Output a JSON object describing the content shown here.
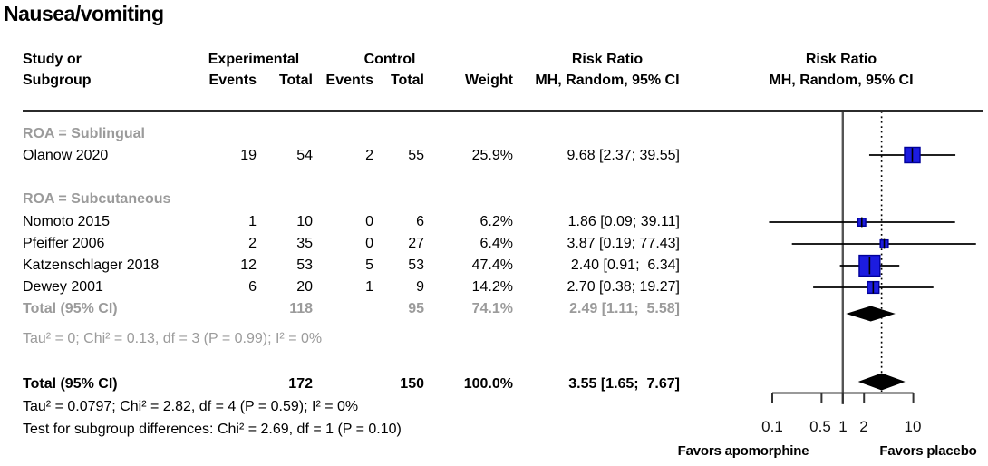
{
  "title": "Nausea/vomiting",
  "table": {
    "header": {
      "study_line1": "Study or",
      "study_line2": "Subgroup",
      "experimental": "Experimental",
      "control": "Control",
      "events_exp": "Events",
      "total_exp": "Total",
      "events_ctrl": "Events",
      "total_ctrl": "Total",
      "weight": "Weight",
      "rr_text_line1": "Risk Ratio",
      "rr_text_line2": "MH, Random, 95% CI",
      "rr_plot_line1": "Risk Ratio",
      "rr_plot_line2": "MH, Random, 95% CI"
    },
    "subgroup1_label": "ROA = Sublingual",
    "subgroup2_label": "ROA = Subcutaneous",
    "rows": [
      {
        "study": "Olanow 2020",
        "events_exp": "19",
        "total_exp": "54",
        "events_ctrl": "2",
        "total_ctrl": "55",
        "weight": "25.9%",
        "rr": "9.68 [2.37; 39.55]"
      },
      {
        "study": "Nomoto 2015",
        "events_exp": "1",
        "total_exp": "10",
        "events_ctrl": "0",
        "total_ctrl": "6",
        "weight": "6.2%",
        "rr": "1.86 [0.09; 39.11]"
      },
      {
        "study": "Pfeiffer 2006",
        "events_exp": "2",
        "total_exp": "35",
        "events_ctrl": "0",
        "total_ctrl": "27",
        "weight": "6.4%",
        "rr": "3.87 [0.19; 77.43]"
      },
      {
        "study": "Katzenschlager 2018",
        "events_exp": "12",
        "total_exp": "53",
        "events_ctrl": "5",
        "total_ctrl": "53",
        "weight": "47.4%",
        "rr": "2.40 [0.91;  6.34]"
      },
      {
        "study": "Dewey 2001",
        "events_exp": "6",
        "total_exp": "20",
        "events_ctrl": "1",
        "total_ctrl": "9",
        "weight": "14.2%",
        "rr": "2.70 [0.38; 19.27]"
      }
    ],
    "subgroup_total": {
      "label": "Total (95% CI)",
      "total_exp": "118",
      "total_ctrl": "95",
      "weight": "74.1%",
      "rr": "2.49 [1.11;  5.58]"
    },
    "subgroup_het": "Tau² = 0; Chi² = 0.13, df = 3 (P = 0.99); I² = 0%",
    "overall_total": {
      "label": "Total (95% CI)",
      "total_exp": "172",
      "total_ctrl": "150",
      "weight": "100.0%",
      "rr": "3.55 [1.65;  7.67]"
    },
    "overall_het": "Tau² = 0.0797; Chi² = 2.82, df = 4 (P = 0.59); I² = 0%",
    "subgroup_test": "Test for subgroup differences: Chi² = 2.69, df = 1 (P = 0.10)"
  },
  "axis": {
    "labels": [
      "0.1",
      "0.5",
      "1",
      "2",
      "10"
    ]
  },
  "footer": {
    "left": "Favors apomorphine",
    "right": "Favors placebo"
  },
  "colors": {
    "square_fill": "#1c1ce0",
    "square_border": "#000099",
    "diamond": "#000000",
    "ref_line": "#555555",
    "dotted_line": "#000000",
    "ci_line": "#000000",
    "axis": "#333333",
    "gray_text": "#9b9b9b"
  },
  "chart_data": {
    "type": "forest",
    "scale": "log10",
    "x_ticks": [
      0.1,
      0.5,
      1,
      2,
      10
    ],
    "xlim": [
      0.1,
      10
    ],
    "ref_line": 1,
    "dotted_line_at": 3.55,
    "effect_measure": "Risk Ratio (MH, Random, 95% CI)",
    "studies": [
      {
        "name": "Olanow 2020",
        "subgroup": "ROA = Sublingual",
        "events_exp": 19,
        "total_exp": 54,
        "events_ctrl": 2,
        "total_ctrl": 55,
        "weight_pct": 25.9,
        "rr": 9.68,
        "ci_low": 2.37,
        "ci_high": 39.55
      },
      {
        "name": "Nomoto 2015",
        "subgroup": "ROA = Subcutaneous",
        "events_exp": 1,
        "total_exp": 10,
        "events_ctrl": 0,
        "total_ctrl": 6,
        "weight_pct": 6.2,
        "rr": 1.86,
        "ci_low": 0.09,
        "ci_high": 39.11
      },
      {
        "name": "Pfeiffer 2006",
        "subgroup": "ROA = Subcutaneous",
        "events_exp": 2,
        "total_exp": 35,
        "events_ctrl": 0,
        "total_ctrl": 27,
        "weight_pct": 6.4,
        "rr": 3.87,
        "ci_low": 0.19,
        "ci_high": 77.43
      },
      {
        "name": "Katzenschlager 2018",
        "subgroup": "ROA = Subcutaneous",
        "events_exp": 12,
        "total_exp": 53,
        "events_ctrl": 5,
        "total_ctrl": 53,
        "weight_pct": 47.4,
        "rr": 2.4,
        "ci_low": 0.91,
        "ci_high": 6.34
      },
      {
        "name": "Dewey 2001",
        "subgroup": "ROA = Subcutaneous",
        "events_exp": 6,
        "total_exp": 20,
        "events_ctrl": 1,
        "total_ctrl": 9,
        "weight_pct": 14.2,
        "rr": 2.7,
        "ci_low": 0.38,
        "ci_high": 19.27
      }
    ],
    "subgroup_total": {
      "name": "Total (95% CI)",
      "subgroup": "ROA = Subcutaneous",
      "total_exp": 118,
      "total_ctrl": 95,
      "weight_pct": 74.1,
      "rr": 2.49,
      "ci_low": 1.11,
      "ci_high": 5.58
    },
    "overall": {
      "name": "Total (95% CI)",
      "total_exp": 172,
      "total_ctrl": 150,
      "weight_pct": 100.0,
      "rr": 3.55,
      "ci_low": 1.65,
      "ci_high": 7.67
    },
    "heterogeneity_subgroup": {
      "tau2": 0,
      "chi2": 0.13,
      "df": 3,
      "p": 0.99,
      "i2_pct": 0
    },
    "heterogeneity_overall": {
      "tau2": 0.0797,
      "chi2": 2.82,
      "df": 4,
      "p": 0.59,
      "i2_pct": 0
    },
    "subgroup_difference_test": {
      "chi2": 2.69,
      "df": 1,
      "p": 0.1
    }
  }
}
